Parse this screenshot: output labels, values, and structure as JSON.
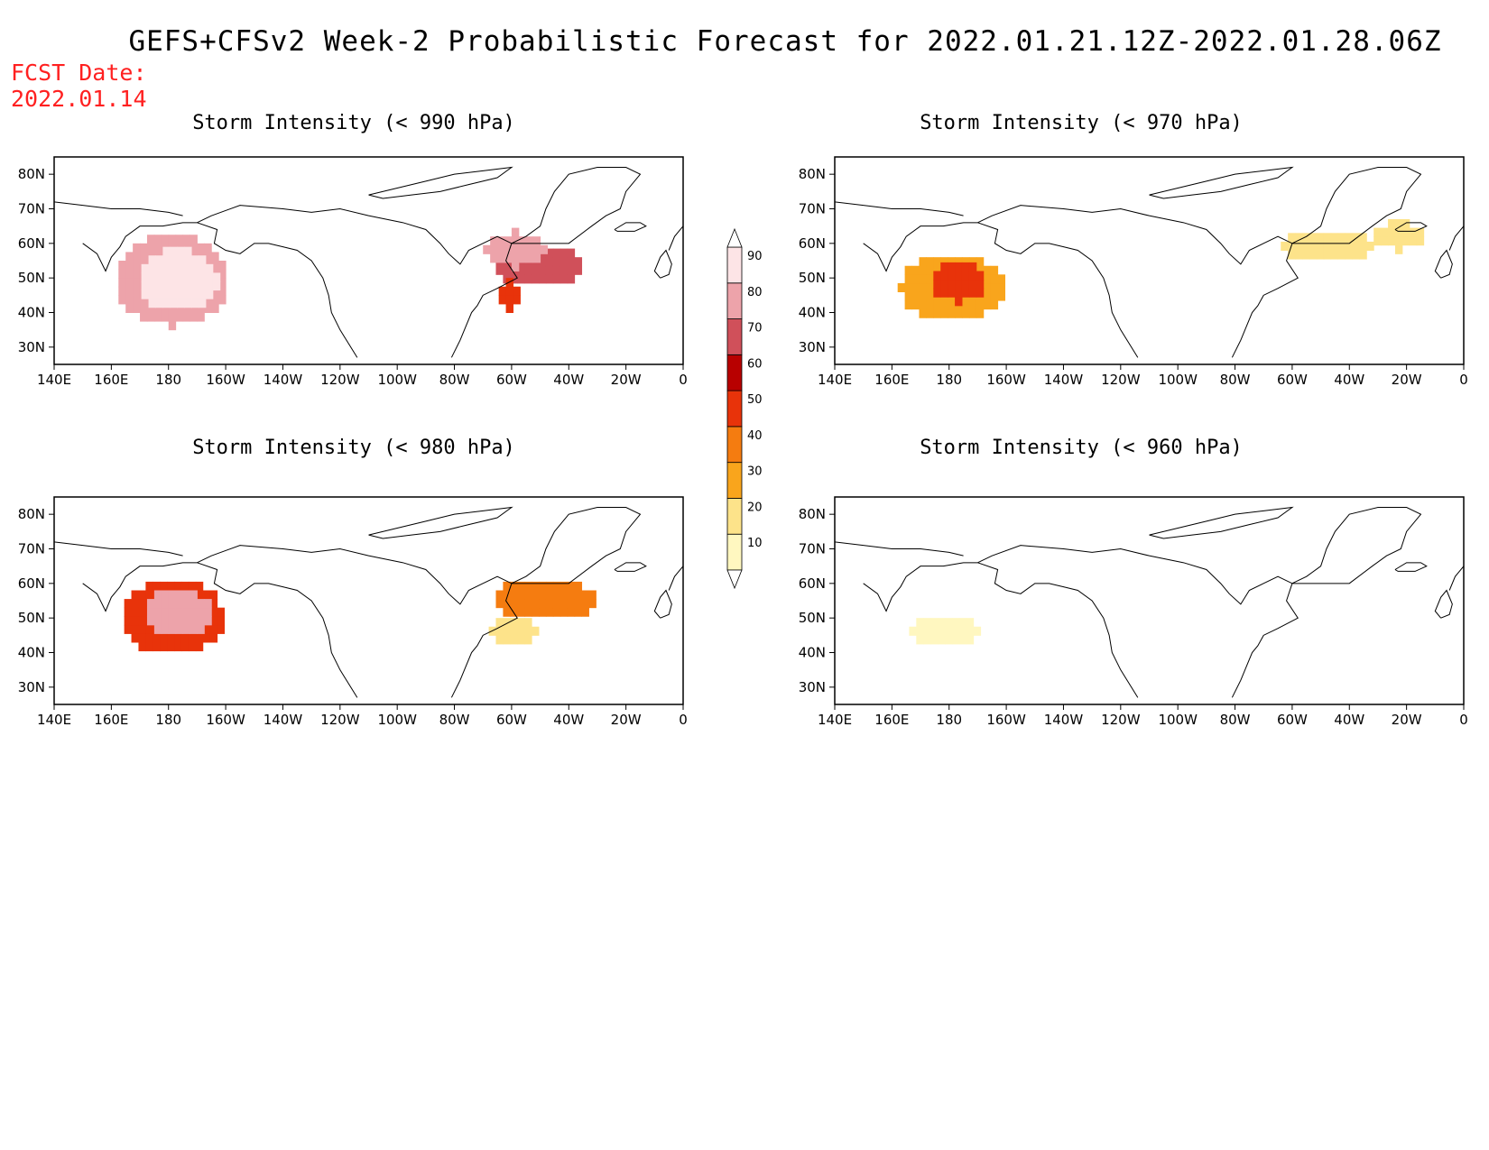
{
  "title": "GEFS+CFSv2 Week-2 Probabilistic Forecast for 2022.01.21.12Z-2022.01.28.06Z",
  "fcst_date_label": "FCST Date:",
  "fcst_date_value": "2022.01.14",
  "x_ticks": [
    "140E",
    "160E",
    "180",
    "160W",
    "140W",
    "120W",
    "100W",
    "80W",
    "60W",
    "40W",
    "20W",
    "0"
  ],
  "y_ticks": [
    "80N",
    "70N",
    "60N",
    "50N",
    "40N",
    "30N"
  ],
  "colorbar": {
    "labels": [
      "10",
      "20",
      "30",
      "40",
      "50",
      "60",
      "70",
      "80",
      "90"
    ],
    "colors": [
      "#fff7c0",
      "#fde38a",
      "#f9a51c",
      "#f57c10",
      "#e8330a",
      "#b80000",
      "#d0505a",
      "#eda3aa",
      "#fde4e6"
    ]
  },
  "panels": [
    {
      "title": "Storm Intensity (< 990 hPa)",
      "blobs": [
        {
          "lon": -180,
          "lat": 48,
          "rlon": 20,
          "rlat": 13,
          "level": 80
        },
        {
          "lon": -178,
          "lat": 48,
          "rlon": 14,
          "rlat": 9,
          "level": 90
        },
        {
          "lon": -52,
          "lat": 52,
          "rlon": 16,
          "rlat": 6,
          "level": 70
        },
        {
          "lon": -60,
          "lat": 57,
          "rlon": 10,
          "rlat": 5,
          "level": 80
        },
        {
          "lon": -62,
          "lat": 44,
          "rlon": 5,
          "rlat": 4,
          "level": 50
        }
      ]
    },
    {
      "title": "Storm Intensity (< 970 hPa)",
      "blobs": [
        {
          "lon": -180,
          "lat": 46,
          "rlon": 18,
          "rlat": 10,
          "level": 30
        },
        {
          "lon": -178,
          "lat": 48,
          "rlon": 10,
          "rlat": 6,
          "level": 50
        },
        {
          "lon": -48,
          "lat": 58,
          "rlon": 16,
          "rlat": 5,
          "level": 20
        },
        {
          "lon": -24,
          "lat": 61,
          "rlon": 10,
          "rlat": 4,
          "level": 20
        }
      ]
    },
    {
      "title": "Storm Intensity (< 980 hPa)",
      "blobs": [
        {
          "lon": -180,
          "lat": 49,
          "rlon": 18,
          "rlat": 11,
          "level": 50
        },
        {
          "lon": -178,
          "lat": 50,
          "rlon": 12,
          "rlat": 7,
          "level": 80
        },
        {
          "lon": -50,
          "lat": 54,
          "rlon": 18,
          "rlat": 6,
          "level": 40
        },
        {
          "lon": -60,
          "lat": 45,
          "rlon": 8,
          "rlat": 5,
          "level": 20
        }
      ]
    },
    {
      "title": "Storm Intensity (< 960 hPa)",
      "blobs": [
        {
          "lon": -182,
          "lat": 45,
          "rlon": 12,
          "rlat": 5,
          "level": 10
        }
      ]
    }
  ]
}
